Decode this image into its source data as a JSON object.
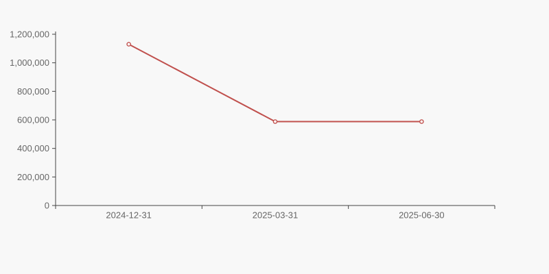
{
  "chart_data": {
    "type": "line",
    "categories": [
      "2024-12-31",
      "2025-03-31",
      "2025-06-30"
    ],
    "series": [
      {
        "name": "value",
        "values": [
          1130000,
          588000,
          588000
        ]
      }
    ],
    "title": "",
    "xlabel": "",
    "ylabel": "",
    "ylim": [
      0,
      1200000
    ],
    "ytick_step": 200000,
    "ytick_labels": [
      "0",
      "200,000",
      "400,000",
      "600,000",
      "800,000",
      "1,000,000",
      "1,200,000"
    ],
    "grid": false,
    "legend_visible": false,
    "marker_shape": "hollow-circle",
    "colors": {
      "line": "#c0504d",
      "marker_fill": "#ffffff",
      "axis": "#444444",
      "tick_text": "#666666",
      "background": "#f8f8f8"
    }
  }
}
